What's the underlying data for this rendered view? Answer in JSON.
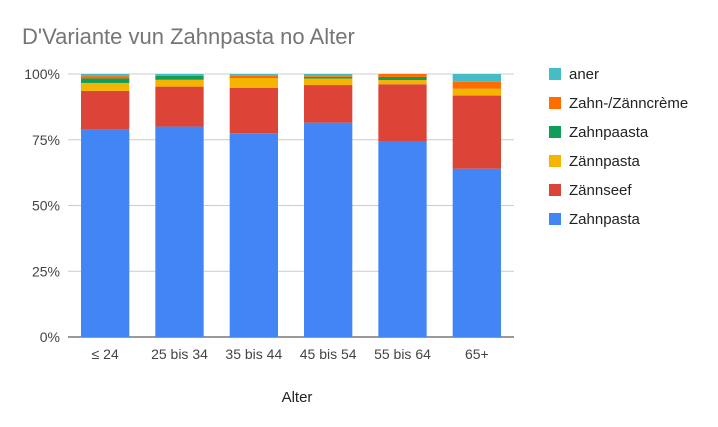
{
  "chart_data": {
    "type": "bar",
    "stacked": true,
    "title": "D'Variante vun Zahnpasta no Alter",
    "xlabel": "Alter",
    "ylabel": "",
    "categories": [
      "≤ 24",
      "25 bis 34",
      "35 bis 44",
      "45 bis 54",
      "55 bis 64",
      "65+"
    ],
    "y_ticks": [
      "0%",
      "25%",
      "50%",
      "75%",
      "100%"
    ],
    "ylim": [
      0,
      100
    ],
    "grid": true,
    "legend_position": "right",
    "series": [
      {
        "name": "Zahnpasta",
        "color": "#4285f4",
        "values": [
          78.8,
          80.0,
          77.5,
          81.5,
          74.3,
          64.0
        ]
      },
      {
        "name": "Zännseef",
        "color": "#db4437",
        "values": [
          14.8,
          15.2,
          17.2,
          14.3,
          21.8,
          27.8
        ]
      },
      {
        "name": "Zännpasta",
        "color": "#f4b400",
        "values": [
          3.0,
          2.6,
          3.8,
          2.5,
          1.6,
          2.6
        ]
      },
      {
        "name": "Zahnpaasta",
        "color": "#0f9d58",
        "values": [
          1.7,
          1.5,
          0.3,
          0.6,
          1.2,
          0.0
        ]
      },
      {
        "name": "Zahn-/Zänncrème",
        "color": "#ff6d00",
        "values": [
          0.9,
          0.3,
          0.7,
          0.3,
          1.1,
          2.6
        ]
      },
      {
        "name": "aner",
        "color": "#46bdc6",
        "values": [
          0.8,
          0.4,
          0.5,
          0.8,
          0.0,
          3.0
        ]
      }
    ]
  }
}
